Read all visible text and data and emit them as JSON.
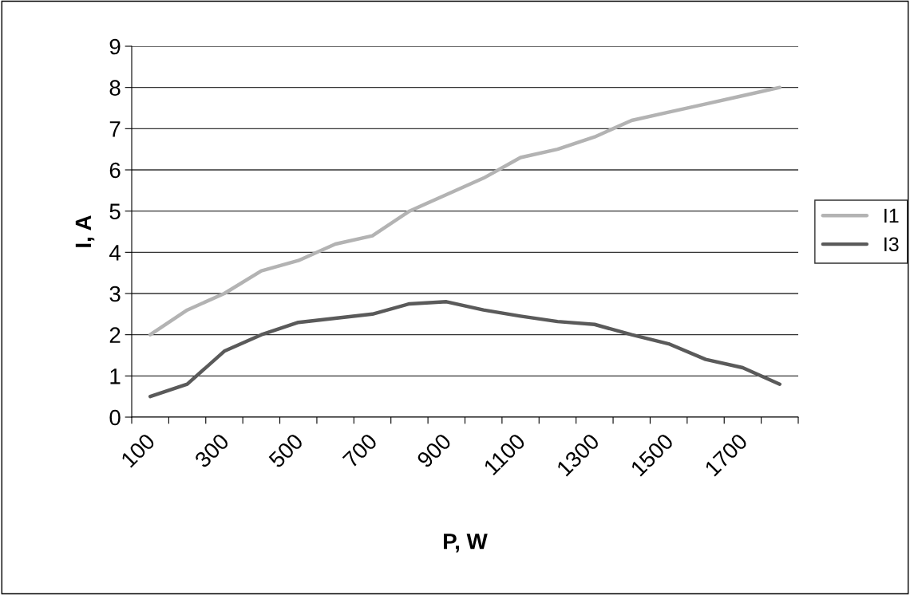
{
  "chart_data": {
    "type": "line",
    "xlabel": "P, W",
    "ylabel": "I, A",
    "categories": [
      "100",
      null,
      "300",
      null,
      "500",
      null,
      "700",
      null,
      "900",
      null,
      "1100",
      null,
      "1300",
      null,
      "1500",
      null,
      "1700",
      null
    ],
    "series": [
      {
        "name": "I1",
        "color": "#b3b3b3",
        "values": [
          2.0,
          2.6,
          3.0,
          3.55,
          3.8,
          4.2,
          4.4,
          5.0,
          5.4,
          5.8,
          6.3,
          6.5,
          6.8,
          7.2,
          7.4,
          7.6,
          7.8,
          8.0
        ]
      },
      {
        "name": "I3",
        "color": "#5a5a5a",
        "values": [
          0.5,
          0.8,
          1.6,
          2.0,
          2.3,
          2.4,
          2.5,
          2.75,
          2.8,
          2.6,
          2.45,
          2.32,
          2.25,
          2.0,
          1.78,
          1.4,
          1.2,
          0.8
        ]
      }
    ],
    "ylim": [
      0,
      9
    ],
    "yticks": [
      0,
      1,
      2,
      3,
      4,
      5,
      6,
      7,
      8,
      9
    ],
    "grid": "y",
    "legend": "right",
    "marker": "none",
    "line_style": "solid"
  }
}
